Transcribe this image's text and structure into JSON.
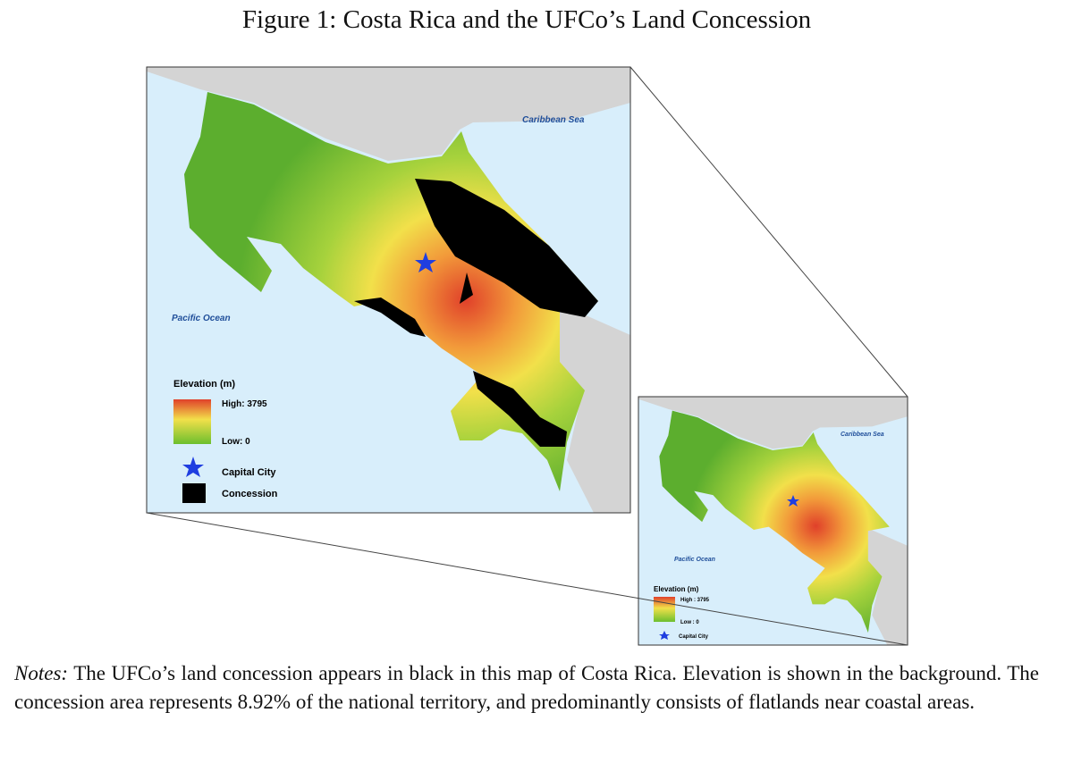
{
  "title": "Figure 1: Costa Rica and the UFCo’s Land Concession",
  "main_map": {
    "labels": {
      "caribbean": "Caribbean Sea",
      "pacific": "Pacific Ocean"
    },
    "legend": {
      "title": "Elevation (m)",
      "high": "High: 3795",
      "low": "Low: 0",
      "capital": "Capital City",
      "concession": "Concession"
    }
  },
  "inset_map": {
    "labels": {
      "caribbean": "Caribbean Sea",
      "pacific": "Pacific Ocean"
    },
    "legend": {
      "title": "Elevation (m)",
      "high": "High : 3795",
      "low": "Low : 0",
      "capital": "Capital City"
    }
  },
  "notes": {
    "label": "Notes:",
    "text": "The UFCo’s land concession appears in black in this map of Costa Rica. Elevation is shown in the background. The concession area represents 8.92% of the national territory, and predominantly consists of flatlands near coastal areas."
  }
}
